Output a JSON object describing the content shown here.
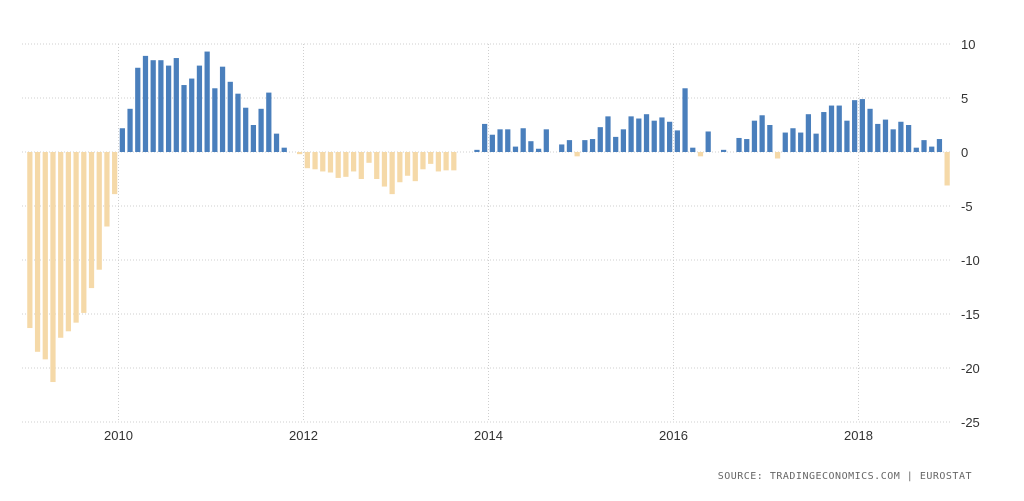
{
  "chart_data": {
    "type": "bar",
    "x_unit": "month",
    "x": [
      "2009-01",
      "2009-02",
      "2009-03",
      "2009-04",
      "2009-05",
      "2009-06",
      "2009-07",
      "2009-08",
      "2009-09",
      "2009-10",
      "2009-11",
      "2009-12",
      "2010-01",
      "2010-02",
      "2010-03",
      "2010-04",
      "2010-05",
      "2010-06",
      "2010-07",
      "2010-08",
      "2010-09",
      "2010-10",
      "2010-11",
      "2010-12",
      "2011-01",
      "2011-02",
      "2011-03",
      "2011-04",
      "2011-05",
      "2011-06",
      "2011-07",
      "2011-08",
      "2011-09",
      "2011-10",
      "2011-11",
      "2011-12",
      "2012-01",
      "2012-02",
      "2012-03",
      "2012-04",
      "2012-05",
      "2012-06",
      "2012-07",
      "2012-08",
      "2012-09",
      "2012-10",
      "2012-11",
      "2012-12",
      "2013-01",
      "2013-02",
      "2013-03",
      "2013-04",
      "2013-05",
      "2013-06",
      "2013-07",
      "2013-08",
      "2013-09",
      "2013-10",
      "2013-11",
      "2013-12",
      "2014-01",
      "2014-02",
      "2014-03",
      "2014-04",
      "2014-05",
      "2014-06",
      "2014-07",
      "2014-08",
      "2014-09",
      "2014-10",
      "2014-11",
      "2014-12",
      "2015-01",
      "2015-02",
      "2015-03",
      "2015-04",
      "2015-05",
      "2015-06",
      "2015-07",
      "2015-08",
      "2015-09",
      "2015-10",
      "2015-11",
      "2015-12",
      "2016-01",
      "2016-02",
      "2016-03",
      "2016-04",
      "2016-05",
      "2016-06",
      "2016-07",
      "2016-08",
      "2016-09",
      "2016-10",
      "2016-11",
      "2016-12",
      "2017-01",
      "2017-02",
      "2017-03",
      "2017-04",
      "2017-05",
      "2017-06",
      "2017-07",
      "2017-08",
      "2017-09",
      "2017-10",
      "2017-11",
      "2017-12",
      "2018-01",
      "2018-02",
      "2018-03",
      "2018-04",
      "2018-05",
      "2018-06",
      "2018-07",
      "2018-08",
      "2018-09",
      "2018-10",
      "2018-11",
      "2018-12"
    ],
    "values": [
      -16.3,
      -18.5,
      -19.2,
      -21.3,
      -17.2,
      -16.6,
      -15.8,
      -14.9,
      -12.6,
      -10.9,
      -6.9,
      -3.9,
      2.2,
      4.0,
      7.8,
      8.9,
      8.5,
      8.5,
      8.0,
      8.7,
      6.2,
      6.8,
      8.0,
      9.3,
      5.9,
      7.9,
      6.5,
      5.4,
      4.1,
      2.5,
      4.0,
      5.5,
      1.7,
      0.4,
      0,
      -0.2,
      -1.5,
      -1.6,
      -1.8,
      -1.9,
      -2.4,
      -2.3,
      -1.8,
      -2.5,
      -1.0,
      -2.5,
      -3.2,
      -3.9,
      -2.8,
      -2.2,
      -2.7,
      -1.6,
      -1.1,
      -1.8,
      -1.7,
      -1.7,
      0,
      0,
      0.2,
      2.6,
      1.6,
      2.1,
      2.1,
      0.5,
      2.2,
      1.0,
      0.3,
      2.1,
      0,
      0.7,
      1.1,
      -0.4,
      1.1,
      1.2,
      2.3,
      3.3,
      1.4,
      2.1,
      3.3,
      3.1,
      3.5,
      2.9,
      3.2,
      2.8,
      2.0,
      5.9,
      0.4,
      -0.4,
      1.9,
      0,
      0.2,
      0,
      1.3,
      1.2,
      2.9,
      3.4,
      2.5,
      -0.6,
      1.8,
      2.2,
      1.8,
      3.5,
      1.7,
      3.7,
      4.3,
      4.3,
      2.9,
      4.8,
      4.9,
      4.0,
      2.6,
      3.0,
      2.1,
      2.8,
      2.5,
      0.4,
      1.1,
      0.5,
      1.2,
      -3.1
    ],
    "xlim": [
      "2009-01",
      "2018-12"
    ],
    "ylim": [
      -25,
      10
    ],
    "y_ticks": [
      "10",
      "5",
      "0",
      "-5",
      "-10",
      "-15",
      "-20",
      "-25"
    ],
    "x_ticks": [
      {
        "year": "2010",
        "at": "2010-01"
      },
      {
        "year": "2012",
        "at": "2012-01"
      },
      {
        "year": "2014",
        "at": "2014-01"
      },
      {
        "year": "2016",
        "at": "2016-01"
      },
      {
        "year": "2018",
        "at": "2018-01"
      }
    ],
    "y_axis_side": "right",
    "grid": true,
    "colors": {
      "positive": "#4a7fbc",
      "negative": "#f5d9a8",
      "grid": "#cfcfcf"
    },
    "source": "SOURCE: TRADINGECONOMICS.COM | EUROSTAT"
  }
}
